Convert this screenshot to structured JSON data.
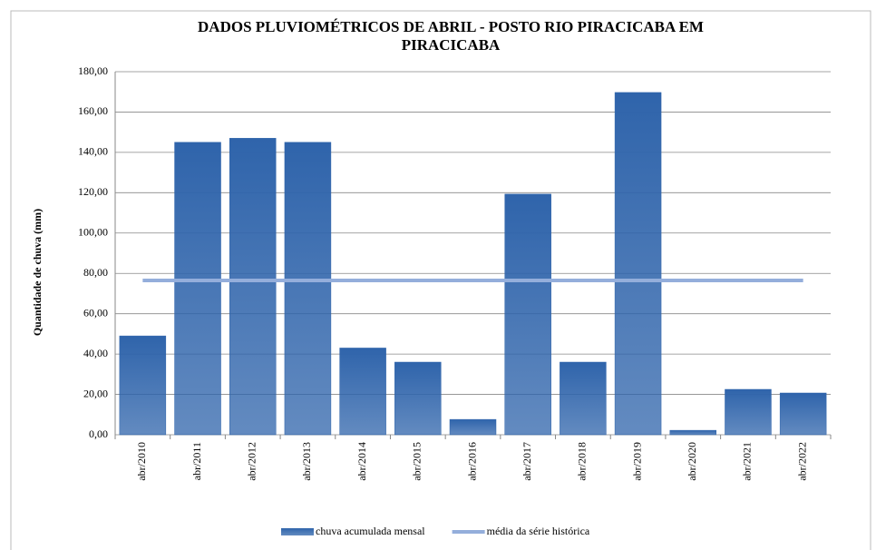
{
  "chart_data": {
    "type": "bar",
    "title": "DADOS PLUVIOMÉTRICOS DE ABRIL - POSTO RIO PIRACICABA EM PIRACICABA",
    "y_axis_label": "Quantidade de chuva (mm)",
    "categories": [
      "abr/2010",
      "abr/2011",
      "abr/2012",
      "abr/2013",
      "abr/2014",
      "abr/2015",
      "abr/2016",
      "abr/2017",
      "abr/2018",
      "abr/2019",
      "abr/2020",
      "abr/2021",
      "abr/2022"
    ],
    "series": [
      {
        "name": "chuva acumulada mensal",
        "color": "#2f64ab",
        "values": [
          49,
          145,
          147,
          145,
          43,
          36,
          7.6,
          119.3,
          36,
          169.7,
          2.2,
          22.5,
          20.7
        ]
      },
      {
        "name": "média da série histórica",
        "color": "#94aedb",
        "type": "line",
        "values": [
          76.5,
          76.5,
          76.5,
          76.5,
          76.5,
          76.5,
          76.5,
          76.5,
          76.5,
          76.5,
          76.5,
          76.5,
          76.5
        ]
      }
    ],
    "ylim": [
      0,
      180
    ],
    "yticks": [
      {
        "value": 0,
        "label": "0,00"
      },
      {
        "value": 20,
        "label": "20,00"
      },
      {
        "value": 40,
        "label": "40,00"
      },
      {
        "value": 60,
        "label": "60,00"
      },
      {
        "value": 80,
        "label": "80,00"
      },
      {
        "value": 100,
        "label": "100,00"
      },
      {
        "value": 120,
        "label": "120,00"
      },
      {
        "value": 140,
        "label": "140,00"
      },
      {
        "value": 160,
        "label": "160,00"
      },
      {
        "value": 180,
        "label": "180,00"
      }
    ],
    "grid": true,
    "legend": "bottom"
  }
}
